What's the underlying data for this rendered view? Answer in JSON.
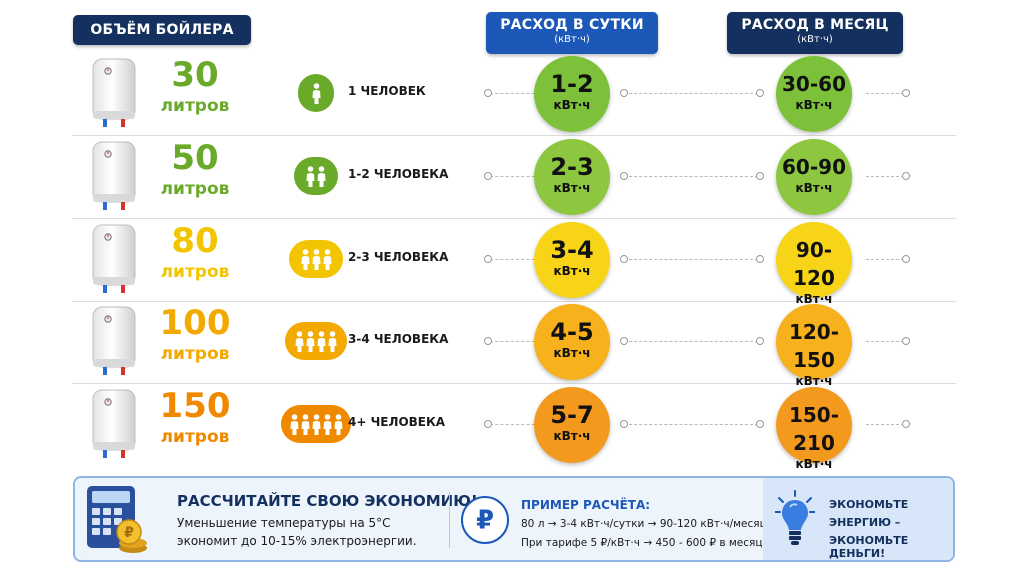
{
  "headers": {
    "volume": "ОБЪЁМ БОЙЛЕРА",
    "day_title": "РАСХОД В СУТКИ",
    "day_unit": "(кВт·ч)",
    "month_title": "РАСХОД В МЕСЯЦ",
    "month_unit": "(кВт·ч)"
  },
  "rows": [
    {
      "volume": "30",
      "unit": "литров",
      "people": "1 ЧЕЛОВЕК",
      "people_count": 1,
      "day": "1-2",
      "day_unit": "кВт·ч",
      "month": "30-60",
      "month_unit": "кВт·ч",
      "color": "#6aaa2a",
      "circle_color": "#7dc13a"
    },
    {
      "volume": "50",
      "unit": "литров",
      "people": "1-2 ЧЕЛОВЕКА",
      "people_count": 2,
      "day": "2-3",
      "day_unit": "кВт·ч",
      "month": "60-90",
      "month_unit": "кВт·ч",
      "color": "#6aaa2a",
      "circle_color": "#8dc63f"
    },
    {
      "volume": "80",
      "unit": "литров",
      "people": "2-3 ЧЕЛОВЕКА",
      "people_count": 3,
      "day": "3-4",
      "day_unit": "кВт·ч",
      "month": "90-120",
      "month_unit": "кВт·ч",
      "color": "#f2c500",
      "circle_color": "#f7d417"
    },
    {
      "volume": "100",
      "unit": "литров",
      "people": "3-4 ЧЕЛОВЕКА",
      "people_count": 4,
      "day": "4-5",
      "day_unit": "кВт·ч",
      "month": "120-150",
      "month_unit": "кВт·ч",
      "color": "#f2a900",
      "circle_color": "#f6b11c"
    },
    {
      "volume": "150",
      "unit": "литров",
      "people": "4+ ЧЕЛОВЕКА",
      "people_count": 5,
      "day": "5-7",
      "day_unit": "кВт·ч",
      "month": "150-210",
      "month_unit": "кВт·ч",
      "color": "#ef8a00",
      "circle_color": "#f39a1e"
    }
  ],
  "bottom": {
    "calc_title": "РАССЧИТАЙТЕ СВОЮ ЭКОНОМИЮ!",
    "calc_line1": "Уменьшение температуры на 5°С",
    "calc_line2": "экономит до 10-15% электроэнергии.",
    "example_title": "ПРИМЕР РАСЧЁТА:",
    "example_line1": "80 л → 3-4 кВт·ч/сутки → 90-120 кВт·ч/месяц",
    "example_line2": "При тарифе 5 ₽/кВт·ч → 450 - 600 ₽ в месяц",
    "tip_line1": "ЭКОНОМЬТЕ",
    "tip_line2": "ЭНЕРГИЮ –",
    "tip_line3": "ЭКОНОМЬТЕ ДЕНЬГИ!",
    "icons": [
      "calculator-icon",
      "coins-icon",
      "ruble-icon",
      "lightbulb-icon"
    ]
  }
}
